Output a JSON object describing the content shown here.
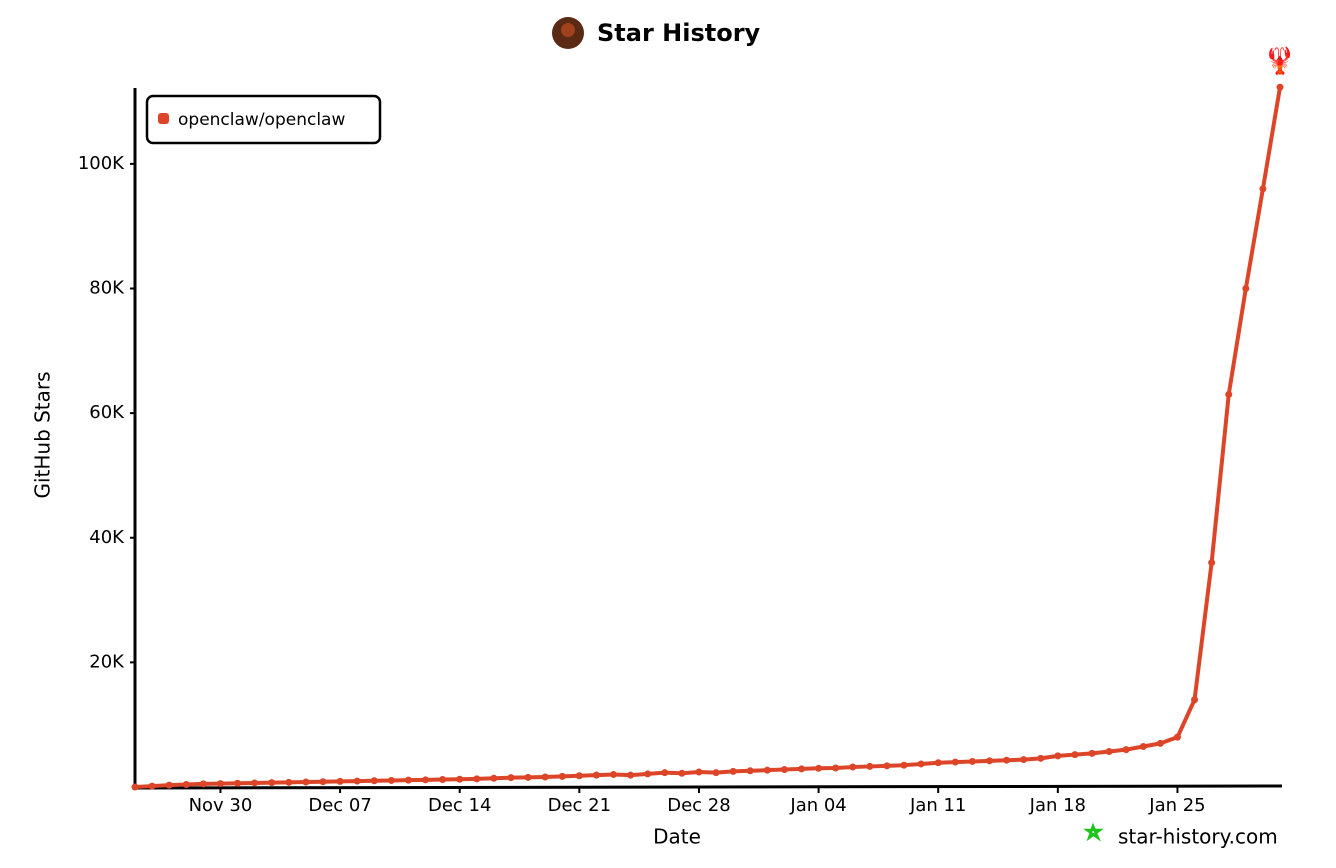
{
  "chart_data": {
    "type": "line",
    "title": "Star History",
    "xlabel": "Date",
    "ylabel": "GitHub Stars",
    "watermark": "star-history.com",
    "legend": "top-left",
    "x": [
      "Nov 25",
      "Nov 26",
      "Nov 27",
      "Nov 28",
      "Nov 29",
      "Nov 30",
      "Dec 01",
      "Dec 02",
      "Dec 03",
      "Dec 04",
      "Dec 05",
      "Dec 06",
      "Dec 07",
      "Dec 08",
      "Dec 09",
      "Dec 10",
      "Dec 11",
      "Dec 12",
      "Dec 13",
      "Dec 14",
      "Dec 15",
      "Dec 16",
      "Dec 17",
      "Dec 18",
      "Dec 19",
      "Dec 20",
      "Dec 21",
      "Dec 22",
      "Dec 23",
      "Dec 24",
      "Dec 25",
      "Dec 26",
      "Dec 27",
      "Dec 28",
      "Dec 29",
      "Dec 30",
      "Dec 31",
      "Jan 01",
      "Jan 02",
      "Jan 03",
      "Jan 04",
      "Jan 05",
      "Jan 06",
      "Jan 07",
      "Jan 08",
      "Jan 09",
      "Jan 10",
      "Jan 11",
      "Jan 12",
      "Jan 13",
      "Jan 14",
      "Jan 15",
      "Jan 16",
      "Jan 17",
      "Jan 18",
      "Jan 19",
      "Jan 20",
      "Jan 21",
      "Jan 22",
      "Jan 23",
      "Jan 24",
      "Jan 25",
      "Jan 26",
      "Jan 27",
      "Jan 28",
      "Jan 29",
      "Jan 30",
      "Jan 31"
    ],
    "series": [
      {
        "name": "openclaw/openclaw",
        "color": "#dd4528",
        "values": [
          0,
          150,
          300,
          400,
          500,
          550,
          600,
          650,
          700,
          750,
          800,
          850,
          900,
          950,
          1000,
          1050,
          1100,
          1150,
          1200,
          1250,
          1300,
          1400,
          1500,
          1550,
          1600,
          1700,
          1800,
          1900,
          2000,
          1900,
          2100,
          2300,
          2200,
          2400,
          2300,
          2500,
          2600,
          2700,
          2800,
          2900,
          3000,
          3050,
          3200,
          3300,
          3400,
          3500,
          3700,
          3900,
          4000,
          4100,
          4200,
          4300,
          4400,
          4600,
          5000,
          5200,
          5400,
          5700,
          6000,
          6500,
          7000,
          8000,
          14000,
          36000,
          63000,
          80000,
          96000,
          112300
        ]
      }
    ],
    "xticks": [
      "Nov 30",
      "Dec 07",
      "Dec 14",
      "Dec 21",
      "Dec 28",
      "Jan 04",
      "Jan 11",
      "Jan 18",
      "Jan 25"
    ],
    "ylim": [
      0,
      112500
    ],
    "yticks": [
      {
        "value": 20000,
        "label": "20K"
      },
      {
        "value": 40000,
        "label": "40K"
      },
      {
        "value": 60000,
        "label": "60K"
      },
      {
        "value": 80000,
        "label": "80K"
      },
      {
        "value": 100000,
        "label": "100K"
      }
    ]
  }
}
